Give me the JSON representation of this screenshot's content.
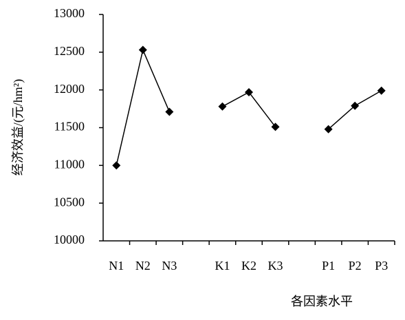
{
  "chart_data": {
    "type": "line",
    "y_label": "经济效益/(元/hm²)",
    "x_label": "各因素水平",
    "categories": [
      "N1",
      "N2",
      "N3",
      null,
      "K1",
      "K2",
      "K3",
      null,
      "P1",
      "P2",
      "P3"
    ],
    "series": [
      {
        "color": "#000000",
        "values": [
          11000,
          12530,
          11710,
          null,
          11780,
          11970,
          11510,
          null,
          11480,
          11790,
          11990
        ]
      }
    ],
    "ylim": [
      10000,
      13000
    ],
    "yticks": [
      10000,
      10500,
      11000,
      11500,
      12000,
      12500,
      13000
    ]
  }
}
